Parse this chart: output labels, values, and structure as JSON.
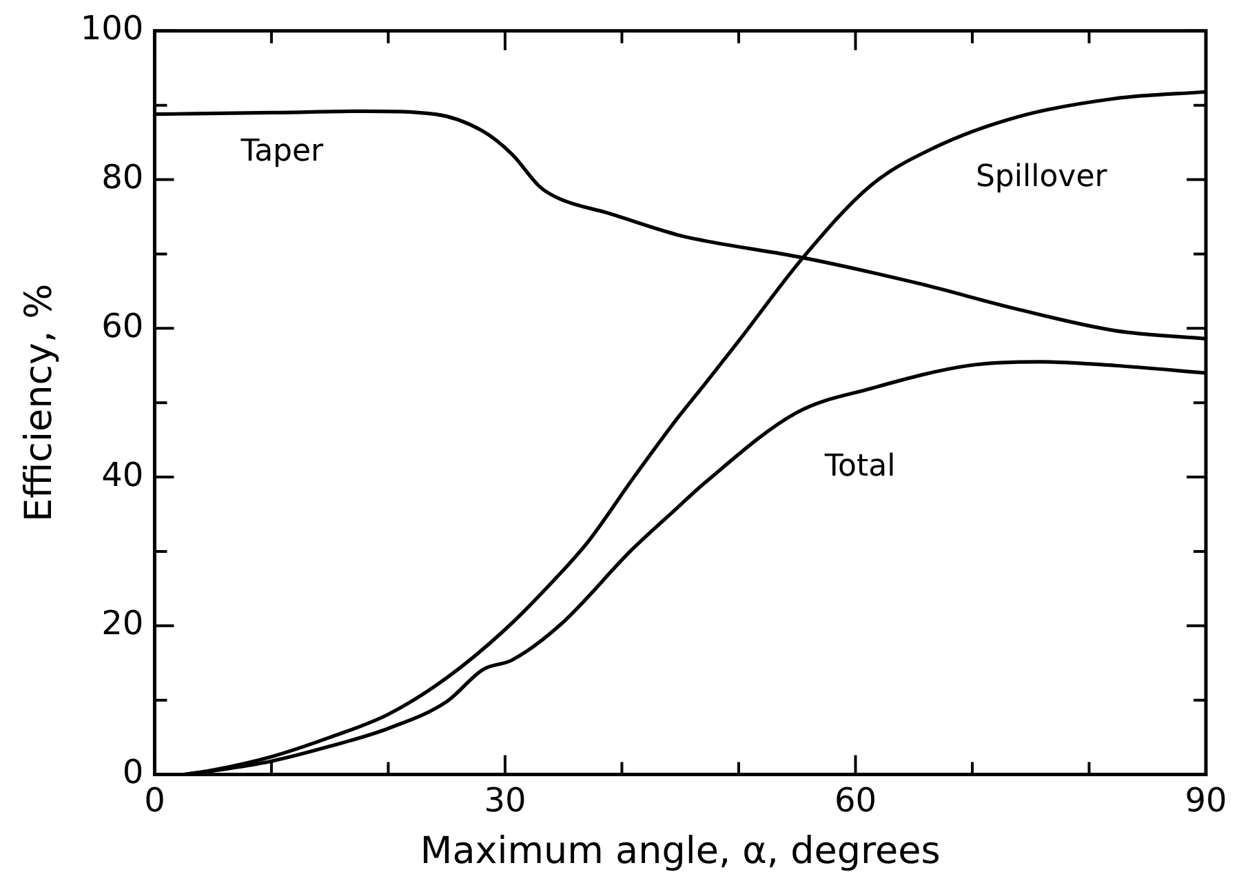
{
  "chart_data": {
    "type": "line",
    "xlabel": "Maximum angle, α, degrees",
    "ylabel": "Efficiency, %",
    "xlim": [
      0,
      90
    ],
    "ylim": [
      0,
      100
    ],
    "xticks": [
      0,
      {
        "value": 10,
        "label": null
      },
      {
        "value": 20,
        "label": null
      },
      30,
      {
        "value": 40,
        "label": null
      },
      {
        "value": 50,
        "label": null
      },
      60,
      {
        "value": 70,
        "label": null
      },
      {
        "value": 80,
        "label": null
      },
      90
    ],
    "yticks": [
      0,
      {
        "value": 10,
        "label": null
      },
      20,
      {
        "value": 30,
        "label": null
      },
      40,
      {
        "value": 50,
        "label": null
      },
      60,
      {
        "value": 70,
        "label": null
      },
      80,
      {
        "value": 90,
        "label": null
      },
      100
    ],
    "grid": false,
    "legend": false,
    "marker": "none",
    "line_style": "solid",
    "series": [
      {
        "name": "Taper",
        "color": "#000000",
        "x": [
          0,
          10,
          18,
          24,
          28,
          30.6,
          33,
          34.7,
          38.8,
          44.7,
          47,
          55.5,
          65.5,
          73.8,
          82.2,
          90
        ],
        "values": [
          88.8,
          89,
          89.2,
          88.8,
          86.6,
          83.4,
          79,
          77.4,
          75.5,
          72.6,
          71.8,
          69.5,
          66,
          62.6,
          59.7,
          58.6
        ]
      },
      {
        "name": "Spillover",
        "color": "#000000",
        "x": [
          2.5,
          5,
          10,
          15,
          20,
          25,
          30,
          34.7,
          37.2,
          40.9,
          44.7,
          47,
          50,
          55.5,
          61.3,
          66.75,
          73.8,
          82.2,
          90
        ],
        "values": [
          0,
          0.6,
          2.4,
          5,
          8.1,
          13,
          19.5,
          27,
          31.5,
          39.7,
          47.8,
          52.3,
          58.3,
          69.5,
          79.2,
          84.3,
          88.4,
          90.9,
          91.8
        ]
      },
      {
        "name": "Total",
        "color": "#000000",
        "x": [
          2.5,
          5,
          10,
          15,
          20,
          25,
          28.1,
          30.6,
          34.7,
          40.9,
          44.7,
          47,
          55,
          61.3,
          69.7,
          75.9,
          82.2,
          90
        ],
        "values": [
          0,
          0.5,
          1.8,
          3.8,
          6.2,
          9.8,
          14.1,
          15.4,
          20.1,
          30.3,
          35.8,
          39.1,
          48.7,
          51.9,
          55,
          55.5,
          55,
          54
        ]
      }
    ]
  }
}
